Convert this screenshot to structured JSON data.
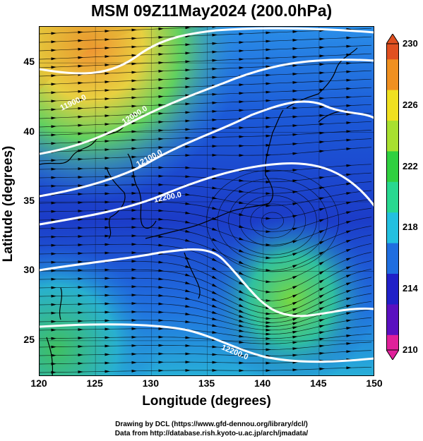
{
  "title": "MSM 09Z11May2024 (200.0hPa)",
  "x_axis": {
    "label": "Longitude (degrees)",
    "ticks": [
      "120",
      "125",
      "130",
      "135",
      "140",
      "145",
      "150"
    ],
    "range": [
      120,
      150
    ]
  },
  "y_axis": {
    "label": "Latitude  (degrees)",
    "ticks": [
      "25",
      "30",
      "35",
      "40",
      "45"
    ],
    "range": [
      22.4,
      47.6
    ]
  },
  "colorbar": {
    "ticks": [
      "230",
      "226",
      "222",
      "218",
      "214",
      "210"
    ],
    "range": [
      210,
      230
    ],
    "colors": [
      "#e0209a",
      "#5a10c0",
      "#2020c8",
      "#1f6ee0",
      "#23c0e0",
      "#28d890",
      "#30d040",
      "#a8e030",
      "#f0e020",
      "#f09020",
      "#e05020"
    ]
  },
  "contours": [
    {
      "label": "11900.0",
      "color": "#ffffff"
    },
    {
      "label": "12000.0",
      "color": "#ffffff"
    },
    {
      "label": "12100.0",
      "color": "#ffffff"
    },
    {
      "label": "12200.0",
      "color": "#ffffff"
    }
  ],
  "credits": {
    "line1": "Drawing by DCL (https://www.gfd-dennou.org/library/dcl/)",
    "line2": "Data from http://database.rish.kyoto-u.ac.jp/arch/jmadata/"
  }
}
